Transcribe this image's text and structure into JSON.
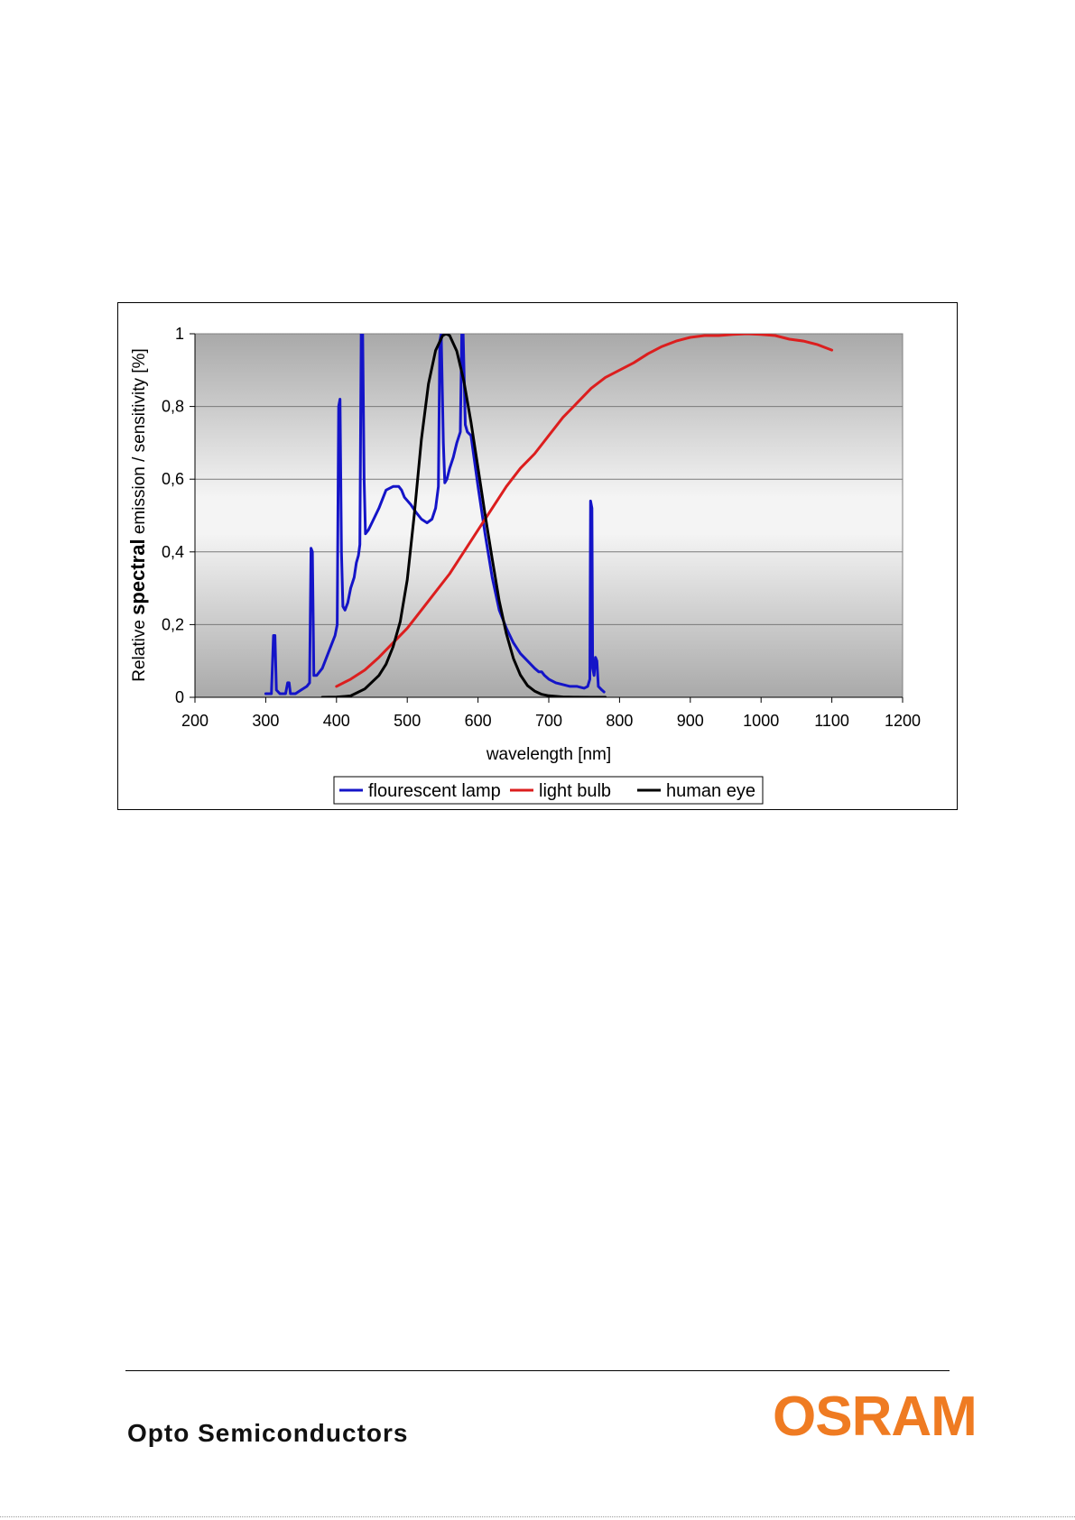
{
  "chart_data": {
    "type": "line",
    "xlabel": "wavelength [nm]",
    "ylabel_prefix": "Relative ",
    "ylabel_bold": "spectral",
    "ylabel_suffix": " emission / sensitivity [%]",
    "xlim": [
      200,
      1200
    ],
    "ylim": [
      0,
      1
    ],
    "x_ticks": [
      "200",
      "300",
      "400",
      "500",
      "600",
      "700",
      "800",
      "900",
      "1000",
      "1100",
      "1200"
    ],
    "y_ticks": [
      "0",
      "0,2",
      "0,4",
      "0,6",
      "0,8",
      "1"
    ],
    "grid": "horizontal",
    "legend_position": "bottom",
    "series": [
      {
        "name": "flourescent lamp",
        "color": "#1414c8",
        "points": [
          [
            300,
            0.01
          ],
          [
            305,
            0.01
          ],
          [
            308,
            0.01
          ],
          [
            311,
            0.17
          ],
          [
            313,
            0.17
          ],
          [
            315,
            0.02
          ],
          [
            320,
            0.01
          ],
          [
            328,
            0.01
          ],
          [
            331,
            0.04
          ],
          [
            333,
            0.04
          ],
          [
            335,
            0.01
          ],
          [
            342,
            0.01
          ],
          [
            350,
            0.02
          ],
          [
            358,
            0.03
          ],
          [
            362,
            0.04
          ],
          [
            364,
            0.41
          ],
          [
            366,
            0.4
          ],
          [
            368,
            0.06
          ],
          [
            372,
            0.06
          ],
          [
            380,
            0.08
          ],
          [
            386,
            0.11
          ],
          [
            392,
            0.14
          ],
          [
            398,
            0.17
          ],
          [
            401,
            0.2
          ],
          [
            403,
            0.8
          ],
          [
            405,
            0.82
          ],
          [
            407,
            0.4
          ],
          [
            409,
            0.25
          ],
          [
            412,
            0.24
          ],
          [
            416,
            0.26
          ],
          [
            420,
            0.3
          ],
          [
            425,
            0.33
          ],
          [
            428,
            0.37
          ],
          [
            431,
            0.39
          ],
          [
            433,
            0.42
          ],
          [
            435,
            1.0
          ],
          [
            437,
            1.0
          ],
          [
            439,
            0.6
          ],
          [
            441,
            0.45
          ],
          [
            445,
            0.46
          ],
          [
            450,
            0.48
          ],
          [
            460,
            0.52
          ],
          [
            470,
            0.57
          ],
          [
            480,
            0.58
          ],
          [
            488,
            0.58
          ],
          [
            492,
            0.57
          ],
          [
            496,
            0.55
          ],
          [
            505,
            0.53
          ],
          [
            512,
            0.51
          ],
          [
            520,
            0.49
          ],
          [
            528,
            0.48
          ],
          [
            535,
            0.49
          ],
          [
            540,
            0.52
          ],
          [
            544,
            0.58
          ],
          [
            546,
            0.98
          ],
          [
            548,
            1.0
          ],
          [
            551,
            0.7
          ],
          [
            553,
            0.59
          ],
          [
            556,
            0.6
          ],
          [
            560,
            0.63
          ],
          [
            565,
            0.66
          ],
          [
            570,
            0.7
          ],
          [
            575,
            0.73
          ],
          [
            577,
            1.0
          ],
          [
            579,
            1.0
          ],
          [
            582,
            0.75
          ],
          [
            585,
            0.73
          ],
          [
            590,
            0.72
          ],
          [
            595,
            0.65
          ],
          [
            600,
            0.58
          ],
          [
            610,
            0.45
          ],
          [
            620,
            0.33
          ],
          [
            630,
            0.24
          ],
          [
            640,
            0.19
          ],
          [
            650,
            0.15
          ],
          [
            660,
            0.12
          ],
          [
            670,
            0.1
          ],
          [
            680,
            0.08
          ],
          [
            686,
            0.07
          ],
          [
            690,
            0.07
          ],
          [
            694,
            0.06
          ],
          [
            700,
            0.05
          ],
          [
            710,
            0.04
          ],
          [
            720,
            0.035
          ],
          [
            730,
            0.03
          ],
          [
            740,
            0.03
          ],
          [
            750,
            0.025
          ],
          [
            755,
            0.03
          ],
          [
            758,
            0.05
          ],
          [
            759,
            0.54
          ],
          [
            761,
            0.52
          ],
          [
            762,
            0.08
          ],
          [
            764,
            0.06
          ],
          [
            766,
            0.11
          ],
          [
            768,
            0.1
          ],
          [
            770,
            0.03
          ],
          [
            775,
            0.02
          ],
          [
            778,
            0.015
          ]
        ]
      },
      {
        "name": "light bulb",
        "color": "#dc1e1e",
        "points": [
          [
            400,
            0.03
          ],
          [
            420,
            0.05
          ],
          [
            440,
            0.075
          ],
          [
            460,
            0.11
          ],
          [
            480,
            0.15
          ],
          [
            500,
            0.19
          ],
          [
            520,
            0.24
          ],
          [
            540,
            0.29
          ],
          [
            560,
            0.34
          ],
          [
            580,
            0.4
          ],
          [
            600,
            0.46
          ],
          [
            620,
            0.52
          ],
          [
            640,
            0.58
          ],
          [
            660,
            0.63
          ],
          [
            680,
            0.67
          ],
          [
            700,
            0.72
          ],
          [
            720,
            0.77
          ],
          [
            740,
            0.81
          ],
          [
            760,
            0.85
          ],
          [
            780,
            0.88
          ],
          [
            800,
            0.9
          ],
          [
            820,
            0.92
          ],
          [
            840,
            0.945
          ],
          [
            860,
            0.965
          ],
          [
            880,
            0.98
          ],
          [
            900,
            0.99
          ],
          [
            920,
            0.995
          ],
          [
            940,
            0.995
          ],
          [
            960,
            0.998
          ],
          [
            980,
            1.0
          ],
          [
            1000,
            0.998
          ],
          [
            1020,
            0.995
          ],
          [
            1040,
            0.985
          ],
          [
            1060,
            0.98
          ],
          [
            1080,
            0.97
          ],
          [
            1100,
            0.955
          ]
        ]
      },
      {
        "name": "human eye",
        "color": "#000000",
        "points": [
          [
            380,
            0.0
          ],
          [
            400,
            0.0004
          ],
          [
            420,
            0.004
          ],
          [
            440,
            0.023
          ],
          [
            460,
            0.06
          ],
          [
            470,
            0.091
          ],
          [
            480,
            0.139
          ],
          [
            490,
            0.208
          ],
          [
            500,
            0.323
          ],
          [
            510,
            0.503
          ],
          [
            520,
            0.71
          ],
          [
            530,
            0.862
          ],
          [
            540,
            0.954
          ],
          [
            550,
            0.995
          ],
          [
            555,
            1.0
          ],
          [
            560,
            0.995
          ],
          [
            570,
            0.952
          ],
          [
            580,
            0.87
          ],
          [
            590,
            0.757
          ],
          [
            600,
            0.631
          ],
          [
            610,
            0.503
          ],
          [
            620,
            0.381
          ],
          [
            630,
            0.265
          ],
          [
            640,
            0.175
          ],
          [
            650,
            0.107
          ],
          [
            660,
            0.061
          ],
          [
            670,
            0.032
          ],
          [
            680,
            0.017
          ],
          [
            690,
            0.0082
          ],
          [
            700,
            0.0041
          ],
          [
            720,
            0.001
          ],
          [
            740,
            0.0003
          ],
          [
            760,
            0.0001
          ],
          [
            780,
            0.0
          ]
        ]
      }
    ]
  },
  "footer": {
    "company_division": "Opto Semiconductors",
    "logo_text": "OSRAM",
    "logo_color": "#ef7b22"
  }
}
